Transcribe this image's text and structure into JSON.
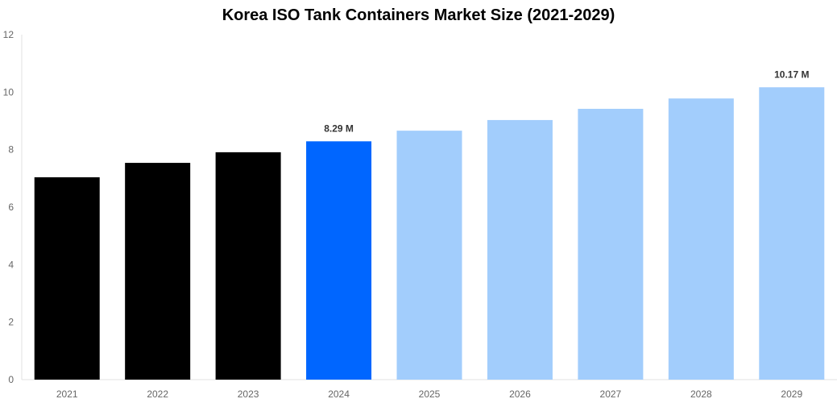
{
  "chart_data": {
    "type": "bar",
    "title": "Korea ISO Tank Containers Market Size (2021-2029)",
    "xlabel": "",
    "ylabel": "",
    "categories": [
      "2021",
      "2022",
      "2023",
      "2024",
      "2025",
      "2026",
      "2027",
      "2028",
      "2029"
    ],
    "values": [
      7.04,
      7.54,
      7.91,
      8.29,
      8.66,
      9.03,
      9.42,
      9.78,
      10.17
    ],
    "colors": [
      "#000000",
      "#000000",
      "#000000",
      "#0066ff",
      "#a2cdfc",
      "#a2cdfc",
      "#a2cdfc",
      "#a2cdfc",
      "#a2cdfc"
    ],
    "data_labels": {
      "3": "8.29 M",
      "8": "10.17 M"
    },
    "ylim": [
      0,
      12
    ],
    "yticks": [
      0,
      2,
      4,
      6,
      8,
      10,
      12
    ],
    "grid": false,
    "legend": "none"
  }
}
